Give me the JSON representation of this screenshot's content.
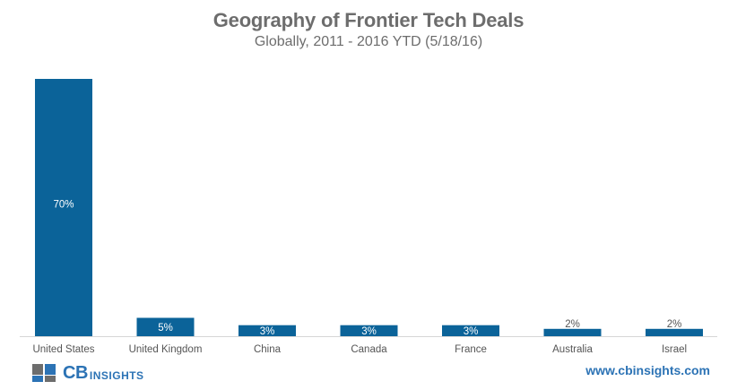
{
  "chart_data": {
    "type": "bar",
    "title": "Geography of Frontier Tech Deals",
    "subtitle": "Globally,  2011 - 2016 YTD (5/18/16)",
    "categories": [
      "United States",
      "United Kingdom",
      "China",
      "Canada",
      "France",
      "Australia",
      "Israel"
    ],
    "values": [
      70,
      5,
      3,
      3,
      3,
      2,
      2
    ],
    "value_labels": [
      "70%",
      "5%",
      "3%",
      "3%",
      "3%",
      "2%",
      "2%"
    ],
    "xlabel": "",
    "ylabel": "",
    "ylim": [
      0,
      70
    ],
    "grid": false,
    "legend": "none",
    "bar_color": "#0b6399"
  },
  "branding": {
    "logo_primary": "CB",
    "logo_secondary": "INSIGHTS",
    "logo_color": "#2c73b5",
    "url": "www.cbinsights.com"
  }
}
